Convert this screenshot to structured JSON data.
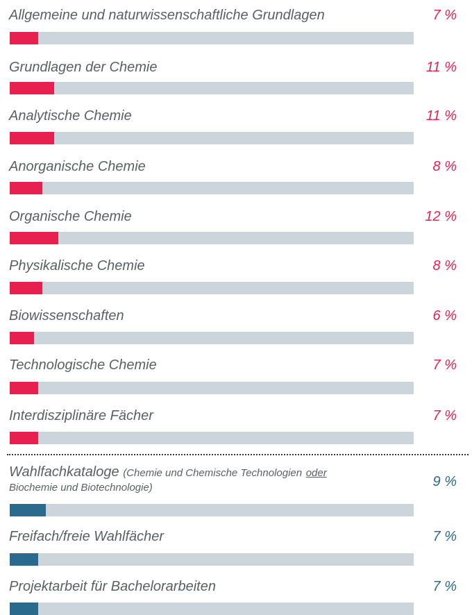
{
  "chart_data": {
    "type": "bar",
    "orientation": "horizontal",
    "xlim": [
      0,
      100
    ],
    "groups": [
      {
        "color": "#e8204f",
        "track_color": "#cdd5dc",
        "categories": [
          "Allgemeine und naturwissenschaftliche Grundlagen",
          "Grundlagen der Chemie",
          "Analytische Chemie",
          "Anorganische Chemie",
          "Organische Chemie",
          "Physikalische Chemie",
          "Biowissenschaften",
          "Technologische Chemie",
          "Interdisziplinäre Fächer"
        ],
        "values": [
          7,
          11,
          11,
          8,
          12,
          8,
          6,
          7,
          7
        ],
        "value_labels": [
          "7 %",
          "11 %",
          "11 %",
          "8 %",
          "12 %",
          "8 %",
          "6 %",
          "7 %",
          "7 %"
        ]
      },
      {
        "color": "#2a6a8c",
        "track_color": "#cdd5dc",
        "categories": [
          "Wahlfachkataloge",
          "Freifach/freie Wahlfächer",
          "Projektarbeit für Bachelorarbeiten"
        ],
        "annotation": {
          "index": 0,
          "parts": [
            "(Chemie und Chemische Technologien",
            "oder",
            "Biochemie und Biotechnologie)"
          ]
        },
        "values": [
          9,
          7,
          7
        ],
        "value_labels": [
          "9 %",
          "7 %",
          "7 %"
        ]
      }
    ]
  }
}
